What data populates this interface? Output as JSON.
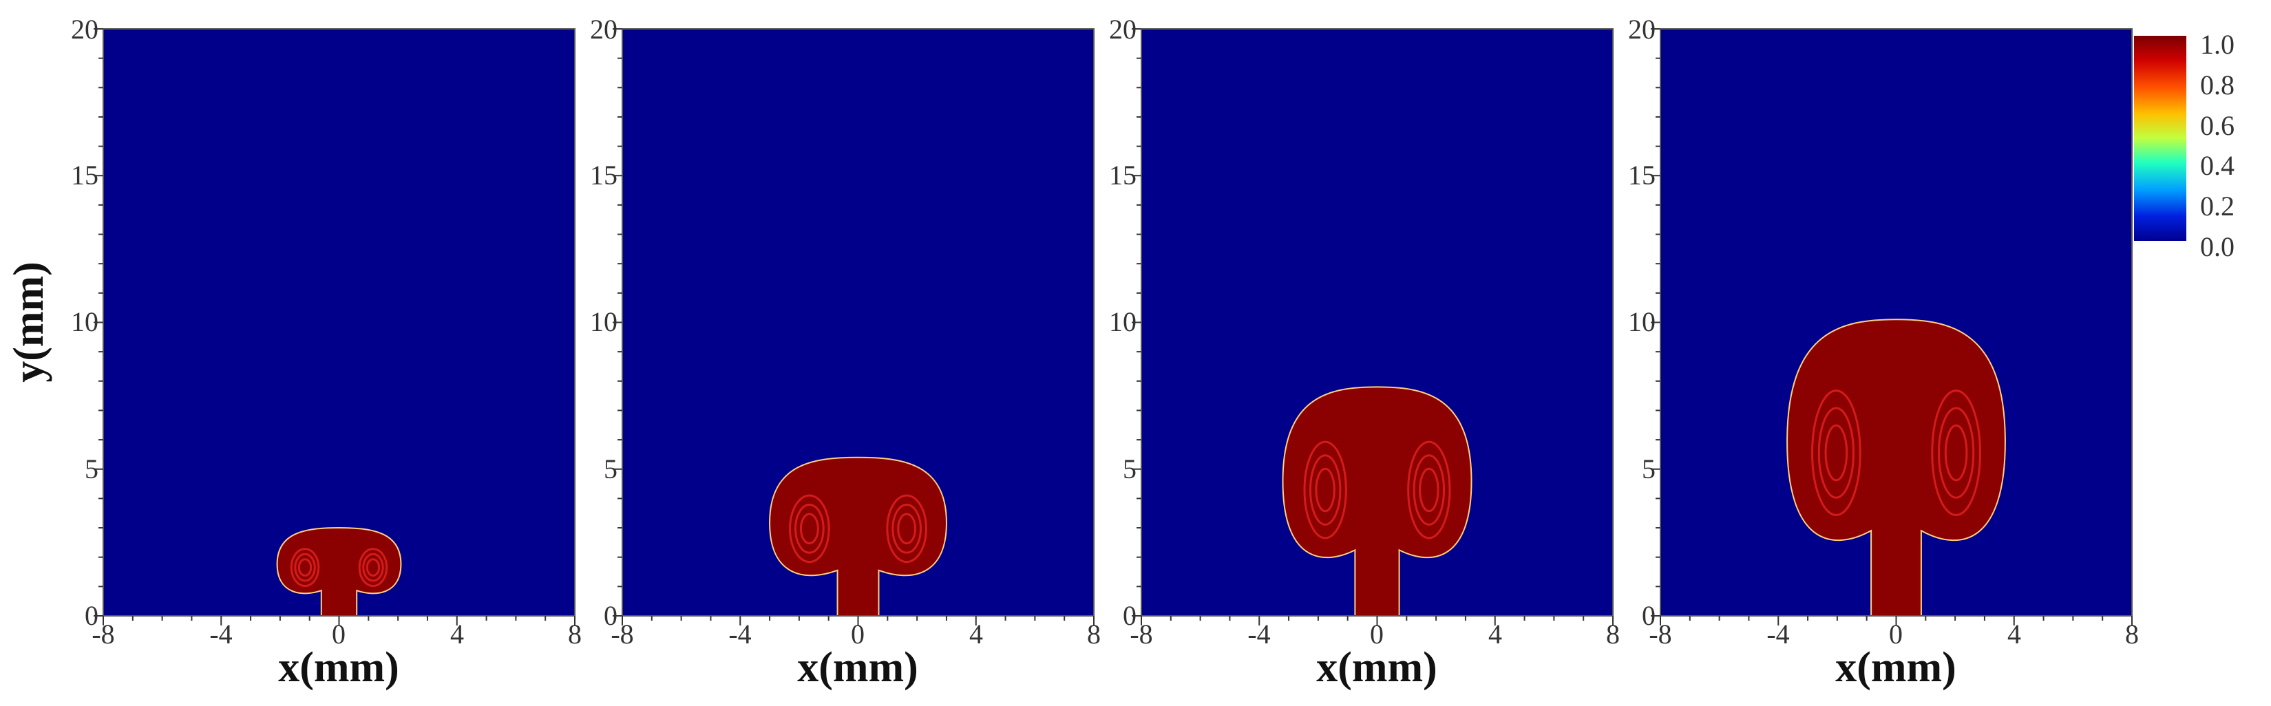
{
  "chart_data": [
    {
      "type": "heatmap",
      "xlabel": "x(mm)",
      "ylabel": "y(mm)",
      "xlim": [
        -8,
        8
      ],
      "ylim": [
        0,
        20
      ],
      "x_ticks": [
        "-8",
        "-4",
        "0",
        "4",
        "8"
      ],
      "y_ticks": [
        "0",
        "5",
        "10",
        "15",
        "20"
      ],
      "plume": {
        "height": 3.0,
        "half_width": 2.1,
        "stem_half_width": 0.6
      }
    },
    {
      "type": "heatmap",
      "xlabel": "x(mm)",
      "ylabel": "",
      "xlim": [
        -8,
        8
      ],
      "ylim": [
        0,
        20
      ],
      "x_ticks": [
        "-8",
        "-4",
        "0",
        "4",
        "8"
      ],
      "y_ticks": [
        "0",
        "5",
        "10",
        "15",
        "20"
      ],
      "plume": {
        "height": 5.4,
        "half_width": 3.0,
        "stem_half_width": 0.7
      }
    },
    {
      "type": "heatmap",
      "xlabel": "x(mm)",
      "ylabel": "",
      "xlim": [
        -8,
        8
      ],
      "ylim": [
        0,
        20
      ],
      "x_ticks": [
        "-8",
        "-4",
        "0",
        "4",
        "8"
      ],
      "y_ticks": [
        "0",
        "5",
        "10",
        "15",
        "20"
      ],
      "plume": {
        "height": 7.8,
        "half_width": 3.2,
        "stem_half_width": 0.75
      }
    },
    {
      "type": "heatmap",
      "xlabel": "x(mm)",
      "ylabel": "",
      "xlim": [
        -8,
        8
      ],
      "ylim": [
        0,
        20
      ],
      "x_ticks": [
        "-8",
        "-4",
        "0",
        "4",
        "8"
      ],
      "y_ticks": [
        "0",
        "5",
        "10",
        "15",
        "20"
      ],
      "plume": {
        "height": 10.1,
        "half_width": 3.7,
        "stem_half_width": 0.85
      }
    }
  ],
  "colorbar": {
    "ticks": [
      "1.0",
      "0.8",
      "0.6",
      "0.4",
      "0.2",
      "0.0"
    ],
    "range": [
      0,
      1
    ],
    "colors": [
      "#8b0000",
      "#ff2000",
      "#ffb000",
      "#ffff40",
      "#40ff80",
      "#00c0ff",
      "#0040ff",
      "#000080"
    ]
  },
  "colors": {
    "background_field": "#00008b",
    "plume_field": "#8b0000",
    "plume_edge": "#ffd080",
    "swirl": "#e02020"
  }
}
